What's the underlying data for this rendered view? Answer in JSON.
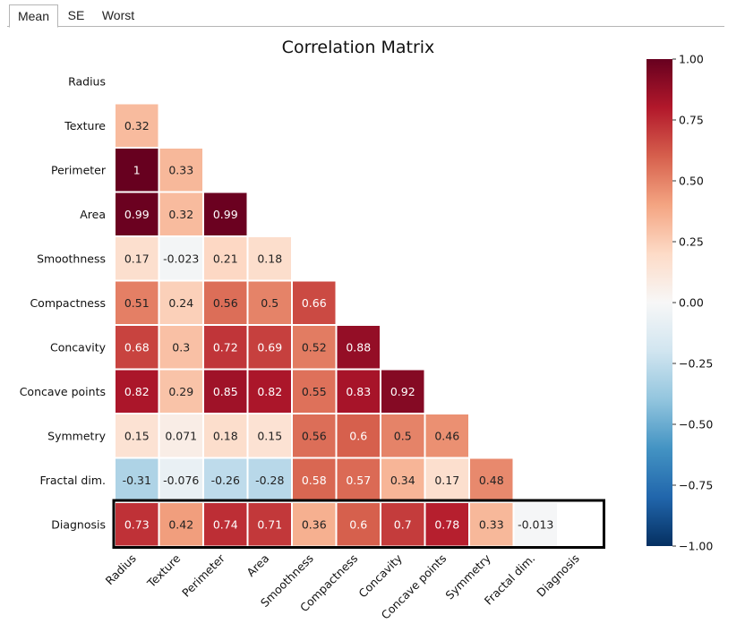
{
  "tabs": [
    {
      "label": "Mean",
      "active": true
    },
    {
      "label": "SE",
      "active": false
    },
    {
      "label": "Worst",
      "active": false
    }
  ],
  "chart_data": {
    "type": "heatmap",
    "title": "Correlation Matrix",
    "variables": [
      "Radius",
      "Texture",
      "Perimeter",
      "Area",
      "Smoothness",
      "Compactness",
      "Concavity",
      "Concave points",
      "Symmetry",
      "Fractal dim.",
      "Diagnosis"
    ],
    "matrix": [
      [],
      [
        "0.32"
      ],
      [
        "1",
        "0.33"
      ],
      [
        "0.99",
        "0.32",
        "0.99"
      ],
      [
        "0.17",
        "-0.023",
        "0.21",
        "0.18"
      ],
      [
        "0.51",
        "0.24",
        "0.56",
        "0.5",
        "0.66"
      ],
      [
        "0.68",
        "0.3",
        "0.72",
        "0.69",
        "0.52",
        "0.88"
      ],
      [
        "0.82",
        "0.29",
        "0.85",
        "0.82",
        "0.55",
        "0.83",
        "0.92"
      ],
      [
        "0.15",
        "0.071",
        "0.18",
        "0.15",
        "0.56",
        "0.6",
        "0.5",
        "0.46"
      ],
      [
        "-0.31",
        "-0.076",
        "-0.26",
        "-0.28",
        "0.58",
        "0.57",
        "0.34",
        "0.17",
        "0.48"
      ],
      [
        "0.73",
        "0.42",
        "0.74",
        "0.71",
        "0.36",
        "0.6",
        "0.7",
        "0.78",
        "0.33",
        "-0.013"
      ]
    ],
    "mask": "upper triangle including diagonal",
    "highlighted_row": "Diagnosis",
    "colormap": "RdBu_r",
    "colorbar": {
      "range": [
        -1.0,
        1.0
      ],
      "ticks": [
        "1.00",
        "0.75",
        "0.50",
        "0.25",
        "0.00",
        "−0.25",
        "−0.50",
        "−0.75",
        "−1.00"
      ]
    }
  }
}
